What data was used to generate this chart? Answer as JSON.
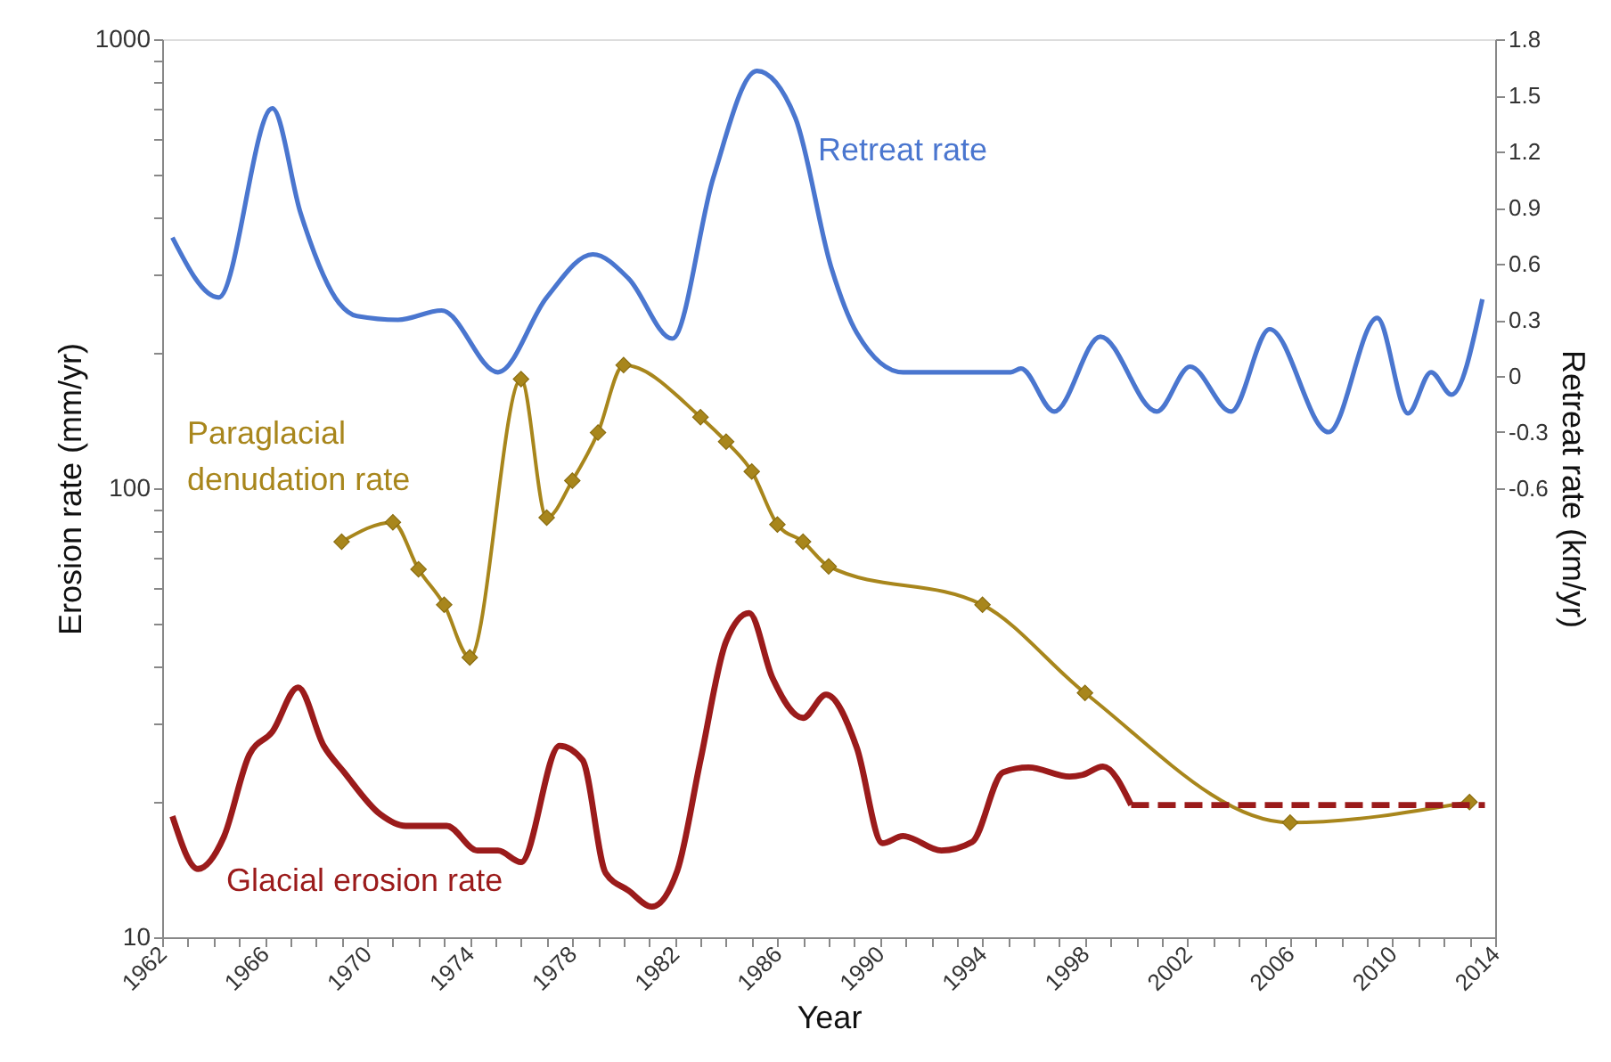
{
  "chart_data": {
    "type": "line",
    "xlabel": "Year",
    "ylabel": "Erosion rate (mm/yr)",
    "y2label": "Retreat rate (km/yr)",
    "log": "y",
    "grid": false,
    "legend": false,
    "xlim": [
      1962,
      2014
    ],
    "xticks": [
      1962,
      {
        "value": 1963,
        "label": null
      },
      {
        "value": 1964,
        "label": null
      },
      {
        "value": 1965,
        "label": null
      },
      1966,
      {
        "value": 1967,
        "label": null
      },
      {
        "value": 1968,
        "label": null
      },
      {
        "value": 1969,
        "label": null
      },
      1970,
      {
        "value": 1971,
        "label": null
      },
      {
        "value": 1972,
        "label": null
      },
      {
        "value": 1973,
        "label": null
      },
      1974,
      {
        "value": 1975,
        "label": null
      },
      {
        "value": 1976,
        "label": null
      },
      {
        "value": 1977,
        "label": null
      },
      1978,
      {
        "value": 1979,
        "label": null
      },
      {
        "value": 1980,
        "label": null
      },
      {
        "value": 1981,
        "label": null
      },
      1982,
      {
        "value": 1983,
        "label": null
      },
      {
        "value": 1984,
        "label": null
      },
      {
        "value": 1985,
        "label": null
      },
      1986,
      {
        "value": 1987,
        "label": null
      },
      {
        "value": 1988,
        "label": null
      },
      {
        "value": 1989,
        "label": null
      },
      1990,
      {
        "value": 1991,
        "label": null
      },
      {
        "value": 1992,
        "label": null
      },
      {
        "value": 1993,
        "label": null
      },
      1994,
      {
        "value": 1995,
        "label": null
      },
      {
        "value": 1996,
        "label": null
      },
      {
        "value": 1997,
        "label": null
      },
      1998,
      {
        "value": 1999,
        "label": null
      },
      {
        "value": 2000,
        "label": null
      },
      {
        "value": 2001,
        "label": null
      },
      2002,
      {
        "value": 2003,
        "label": null
      },
      {
        "value": 2004,
        "label": null
      },
      {
        "value": 2005,
        "label": null
      },
      2006,
      {
        "value": 2007,
        "label": null
      },
      {
        "value": 2008,
        "label": null
      },
      {
        "value": 2009,
        "label": null
      },
      2010,
      {
        "value": 2011,
        "label": null
      },
      {
        "value": 2012,
        "label": null
      },
      {
        "value": 2013,
        "label": null
      },
      2014
    ],
    "ylim": [
      10,
      1000
    ],
    "yticks": [
      10,
      {
        "value": 20,
        "label": null
      },
      {
        "value": 30,
        "label": null
      },
      {
        "value": 40,
        "label": null
      },
      {
        "value": 50,
        "label": null
      },
      {
        "value": 60,
        "label": null
      },
      {
        "value": 70,
        "label": null
      },
      {
        "value": 80,
        "label": null
      },
      {
        "value": 90,
        "label": null
      },
      100,
      {
        "value": 200,
        "label": null
      },
      {
        "value": 300,
        "label": null
      },
      {
        "value": 400,
        "label": null
      },
      {
        "value": 500,
        "label": null
      },
      {
        "value": 600,
        "label": null
      },
      {
        "value": 700,
        "label": null
      },
      {
        "value": 800,
        "label": null
      },
      {
        "value": 900,
        "label": null
      },
      1000
    ],
    "y2lim": [
      -3.0,
      1.8
    ],
    "y2ticks": [
      -0.6,
      -0.3,
      0,
      0.3,
      0.6,
      0.9,
      1.2,
      1.5,
      1.8
    ],
    "series": [
      {
        "name": "Retreat rate",
        "axis": "y2",
        "color": "#4a76cf",
        "marker": "none",
        "x": [
          1962.4,
          1964.2,
          1966.3,
          1967.4,
          1968.9,
          1969.6,
          1971.2,
          1972.9,
          1975.1,
          1977.0,
          1978.8,
          1980.2,
          1981.9,
          1983.5,
          1985.2,
          1986.7,
          1988.1,
          1989.1,
          1990.9,
          1995.1,
          1995.5,
          1996.8,
          1998.6,
          2000.8,
          2002.1,
          2003.7,
          2005.2,
          2007.5,
          2009.4,
          2010.6,
          2011.5,
          2012.3,
          2013.5
        ],
        "values": [
          0.74,
          0.42,
          1.43,
          0.87,
          0.39,
          0.32,
          0.3,
          0.35,
          0.02,
          0.42,
          0.65,
          0.52,
          0.2,
          1.06,
          1.63,
          1.38,
          0.58,
          0.23,
          0.02,
          0.02,
          0.04,
          -0.19,
          0.21,
          -0.19,
          0.05,
          -0.19,
          0.25,
          -0.3,
          0.31,
          -0.2,
          0.02,
          -0.1,
          0.41
        ]
      },
      {
        "name": "Paraglacial denudation rate",
        "color": "#a8861c",
        "marker": "diamond",
        "x": [
          1969,
          1971,
          1972,
          1973,
          1974,
          1976,
          1977,
          1978,
          1979,
          1980,
          1983,
          1984,
          1985,
          1986,
          1987,
          1988,
          1994,
          1998,
          2006,
          2013
        ],
        "values": [
          76,
          84,
          66,
          55,
          42,
          175,
          86,
          104,
          133,
          188,
          144,
          127,
          109,
          83,
          76,
          67,
          55,
          35,
          18,
          20
        ]
      },
      {
        "name": "Glacial erosion rate",
        "color": "#9b1b1b",
        "marker": "none",
        "x": [
          1962.4,
          1963.4,
          1964.4,
          1965.4,
          1966.3,
          1967.3,
          1968.3,
          1969.1,
          1970.5,
          1971.5,
          1973.1,
          1974.3,
          1975.1,
          1976.0,
          1977.5,
          1978.4,
          1979.3,
          1980.2,
          1981.1,
          1982.1,
          1983.0,
          1984.0,
          1984.9,
          1985.8,
          1987.0,
          1987.9,
          1989.1,
          1990.1,
          1990.9,
          1992.4,
          1993.6,
          1994.8,
          1995.8,
          1997.4,
          1997.9,
          1998.7,
          1999.8
        ],
        "values": [
          18.6,
          14.2,
          16.7,
          25.5,
          28.7,
          36,
          26.7,
          23.3,
          18.8,
          17.7,
          17.7,
          15.6,
          15.6,
          14.7,
          26.7,
          24.8,
          13.9,
          12.7,
          11.7,
          14.1,
          24.8,
          45.6,
          52.7,
          37.9,
          30.8,
          34.7,
          26.4,
          16.2,
          16.8,
          15.6,
          16.3,
          23.3,
          23.9,
          22.8,
          23,
          24,
          19.7
        ]
      },
      {
        "color": "#9b1b1b",
        "marker": "none",
        "line_style": "dashed",
        "x": [
          1999.8,
          2013.6
        ],
        "values": [
          19.7,
          19.7
        ]
      }
    ]
  }
}
